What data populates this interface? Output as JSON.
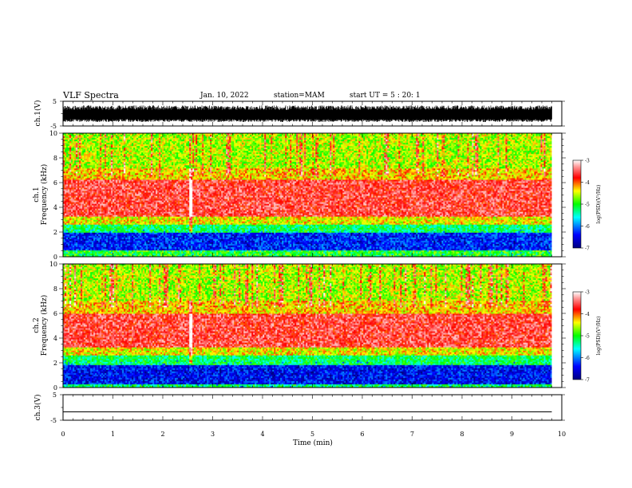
{
  "header": {
    "title": "VLF Spectra",
    "date": "Jan. 10, 2022",
    "station": "station=MAM",
    "start": "start UT =  5 : 20: 1"
  },
  "chart_data": {
    "type": "heatmap",
    "x": {
      "label": "Time (min)",
      "range": [
        0,
        10
      ],
      "ticks": [
        0,
        1,
        2,
        3,
        4,
        5,
        6,
        7,
        8,
        9,
        10
      ]
    },
    "panels": [
      {
        "id": "ch1-waveform",
        "type": "line",
        "ylabel": "ch.1(V)",
        "ylim": [
          -5,
          5
        ],
        "yticks": [
          "5",
          "-5"
        ],
        "description_level": "dense noise, approx -2 to 3 V"
      },
      {
        "id": "ch1-spectrogram",
        "type": "heatmap",
        "ylabel": "ch.1\nFrequency (kHz)",
        "ylim": [
          0,
          10
        ],
        "yticks": [
          0,
          2,
          4,
          6,
          8,
          10
        ],
        "colorbar": {
          "label": "log(PSD)(V²/Hz)",
          "range": [
            -7,
            -3
          ],
          "ticks": [
            -3,
            -4,
            -5,
            -6,
            -7
          ]
        },
        "bands_khz": [
          {
            "from": 0,
            "to": 0.5,
            "level": -5.0
          },
          {
            "from": 0.5,
            "to": 2.0,
            "level": -6.3
          },
          {
            "from": 2.0,
            "to": 2.6,
            "level": -5.2
          },
          {
            "from": 2.6,
            "to": 3.2,
            "level": -4.4
          },
          {
            "from": 3.2,
            "to": 6.2,
            "level": -3.6
          },
          {
            "from": 6.2,
            "to": 7.2,
            "level": -4.3
          },
          {
            "from": 7.2,
            "to": 10,
            "level": -4.6
          }
        ],
        "events_min": [
          2.55
        ]
      },
      {
        "id": "ch2-spectrogram",
        "type": "heatmap",
        "ylabel": "ch.2\nFrequency (kHz)",
        "ylim": [
          0,
          10
        ],
        "yticks": [
          0,
          2,
          4,
          6,
          8,
          10
        ],
        "colorbar": {
          "label": "log(PSD)(V²/Hz)",
          "range": [
            -7,
            -3
          ],
          "ticks": [
            -3,
            -4,
            -5,
            -6,
            -7
          ]
        },
        "bands_khz": [
          {
            "from": 0,
            "to": 0.3,
            "level": -5.2
          },
          {
            "from": 0.3,
            "to": 1.8,
            "level": -6.4
          },
          {
            "from": 1.8,
            "to": 2.6,
            "level": -5.2
          },
          {
            "from": 2.6,
            "to": 3.2,
            "level": -4.4
          },
          {
            "from": 3.2,
            "to": 6.0,
            "level": -3.6
          },
          {
            "from": 6.0,
            "to": 7.0,
            "level": -4.3
          },
          {
            "from": 7.0,
            "to": 10,
            "level": -4.6
          }
        ],
        "events_min": [
          2.55
        ]
      },
      {
        "id": "ch3-waveform",
        "type": "line",
        "ylabel": "ch.3(V)",
        "ylim": [
          -5,
          5
        ],
        "yticks": [
          "5",
          "-5"
        ],
        "values": [
          {
            "x": 0,
            "y": -1.7
          },
          {
            "x": 9.8,
            "y": -1.7
          }
        ]
      }
    ],
    "data_end_min": 9.8,
    "colors": {
      "waveform": "#000000",
      "background": "#ffffff"
    }
  },
  "labels": {
    "colorbar_ticks": [
      "-3",
      "-4",
      "-5",
      "-6",
      "-7"
    ],
    "freq_ticks": [
      "0",
      "2",
      "4",
      "6",
      "8",
      "10"
    ],
    "time_ticks": [
      "0",
      "1",
      "2",
      "3",
      "4",
      "5",
      "6",
      "7",
      "8",
      "9",
      "10"
    ],
    "time_label": "Time (min)",
    "ch1_volt_label": "ch.1(V)",
    "ch3_volt_label": "ch.3(V)",
    "ch1_freq_label": "ch.1",
    "ch2_freq_label": "ch.2",
    "freq_label": "Frequency (kHz)",
    "colorbar_label": "log(PSD)(V²/Hz)"
  }
}
